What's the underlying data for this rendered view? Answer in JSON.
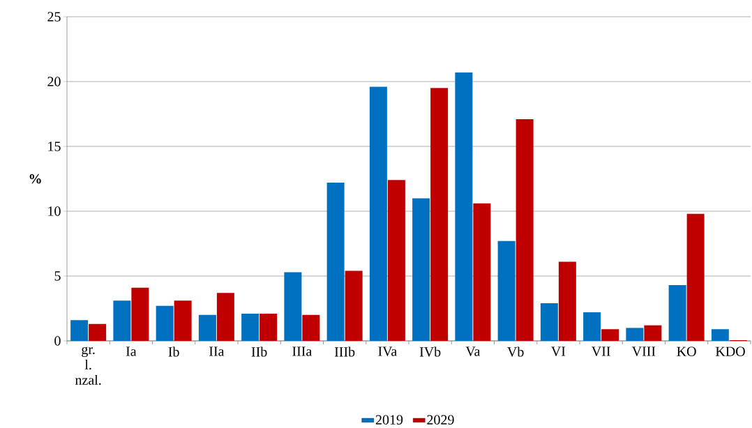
{
  "chart_data": {
    "type": "bar",
    "ylabel": "%",
    "categories": [
      "gr. l. nzal.",
      "Ia",
      "Ib",
      "IIa",
      "IIb",
      "IIIa",
      "IIIb",
      "IVa",
      "IVb",
      "Va",
      "Vb",
      "VI",
      "VII",
      "VIII",
      "KO",
      "KDO"
    ],
    "series": [
      {
        "name": "2019",
        "color": "#0070c0",
        "values": [
          1.6,
          3.1,
          2.7,
          2.0,
          2.1,
          5.3,
          12.2,
          19.6,
          11.0,
          20.7,
          7.7,
          2.9,
          2.2,
          1.0,
          4.3,
          0.9
        ]
      },
      {
        "name": "2029",
        "color": "#c00000",
        "values": [
          1.3,
          4.1,
          3.1,
          3.7,
          2.1,
          2.0,
          5.4,
          12.4,
          19.5,
          10.6,
          17.1,
          6.1,
          0.9,
          1.2,
          9.8,
          0.05
        ]
      }
    ],
    "ylim": [
      0,
      25
    ],
    "yticks": [
      0,
      5,
      10,
      15,
      20,
      25
    ],
    "grid": "y",
    "legend": "bottom"
  }
}
